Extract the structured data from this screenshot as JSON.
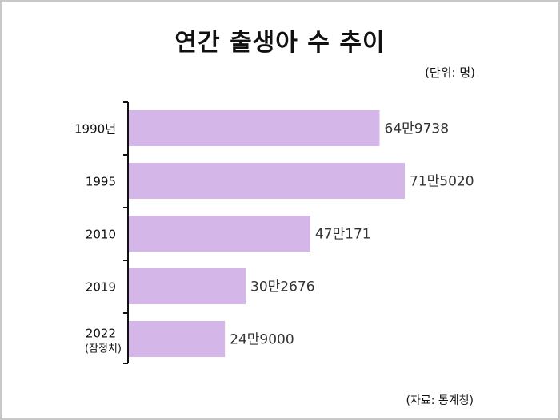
{
  "chart_data": {
    "type": "bar",
    "orientation": "horizontal",
    "title": "연간 출생아 수 추이",
    "unit_note": "(단위: 명)",
    "source": "(자료:  통계청)",
    "categories": [
      {
        "label": "1990년",
        "sub": ""
      },
      {
        "label": "1995",
        "sub": ""
      },
      {
        "label": "2010",
        "sub": ""
      },
      {
        "label": "2019",
        "sub": ""
      },
      {
        "label": "2022",
        "sub": "(잠정치)"
      }
    ],
    "values": [
      649738,
      715020,
      470171,
      302676,
      249000
    ],
    "value_labels": [
      "64만9738",
      "71만5020",
      "47만171",
      "30만2676",
      "24만9000"
    ],
    "bar_color": "#d4b6e8",
    "xlim": [
      0,
      715020
    ]
  }
}
